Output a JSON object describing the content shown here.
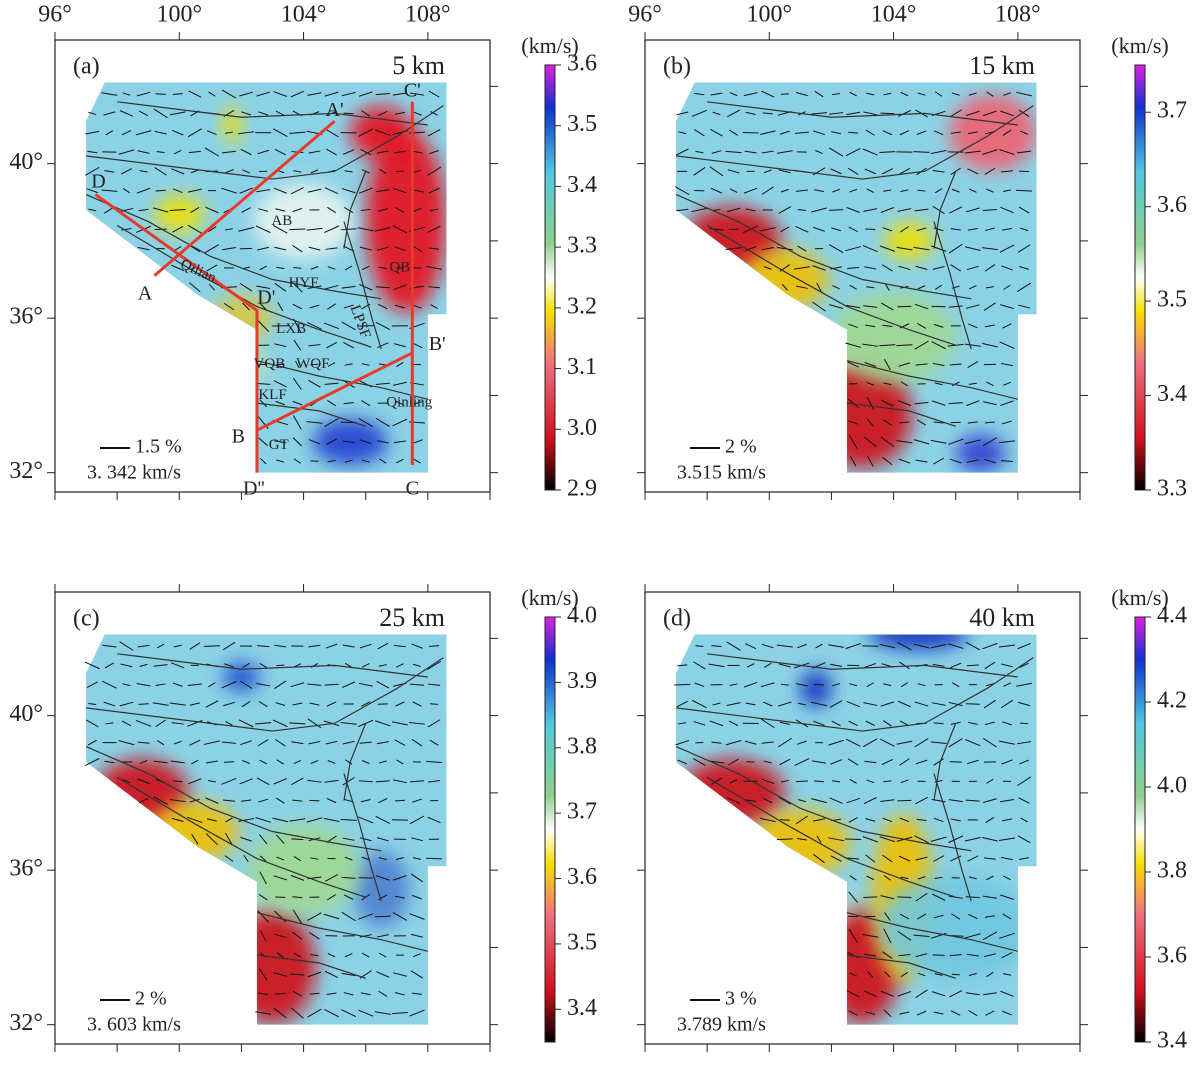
{
  "map": {
    "xlim": [
      96,
      110
    ],
    "ylim": [
      31.5,
      43.2
    ],
    "xticks": [
      {
        "value": 96,
        "label": "96°"
      },
      {
        "value": 100,
        "label": "100°"
      },
      {
        "value": 104,
        "label": "104°"
      },
      {
        "value": 108,
        "label": "108°"
      }
    ],
    "yticks": [
      {
        "value": 40,
        "label": "40°"
      },
      {
        "value": 36,
        "label": "36°"
      },
      {
        "value": 32,
        "label": "32°"
      }
    ]
  },
  "panels": [
    {
      "label": "(a)",
      "depth": "5 km",
      "scale_label": "1.5 %",
      "ref_velocity": "3. 342 km/s",
      "colorbar": {
        "unit": "(km/s)",
        "lim": [
          2.9,
          3.6
        ],
        "ticks": [
          2.9,
          {
            "value": 3,
            "label": "3.0"
          },
          3.1,
          3.2,
          3.3,
          3.4,
          3.5,
          3.6
        ]
      }
    },
    {
      "label": "(b)",
      "depth": "15 km",
      "scale_label": "2 %",
      "ref_velocity": "3.515 km/s",
      "colorbar": {
        "unit": "(km/s)",
        "lim": [
          3.3,
          3.75
        ],
        "ticks": [
          3.3,
          3.4,
          3.5,
          3.6,
          3.7
        ]
      }
    },
    {
      "label": "(c)",
      "depth": "25 km",
      "scale_label": "2 %",
      "ref_velocity": "3. 603 km/s",
      "colorbar": {
        "unit": "(km/s)",
        "lim": [
          3.35,
          4.0
        ],
        "ticks": [
          3.4,
          3.5,
          3.6,
          3.7,
          3.8,
          3.9,
          {
            "value": 4,
            "label": "4.0"
          }
        ]
      }
    },
    {
      "label": "(d)",
      "depth": "40 km",
      "scale_label": "3 %",
      "ref_velocity": "3.789 km/s",
      "colorbar": {
        "unit": "(km/s)",
        "lim": [
          3.4,
          4.4
        ],
        "ticks": [
          3.4,
          3.6,
          3.8,
          {
            "value": 4,
            "label": "4.0"
          },
          4.2,
          4.4
        ]
      }
    }
  ],
  "annotations": [
    "A'",
    "A",
    "B",
    "B'",
    "C",
    "C'",
    "D",
    "D'",
    "D''",
    "AB",
    "QB",
    "HYF",
    "LXB",
    "LPSF",
    "VQB",
    "WQF",
    "KLF",
    "GT",
    "Qilian",
    "Qinling"
  ]
}
